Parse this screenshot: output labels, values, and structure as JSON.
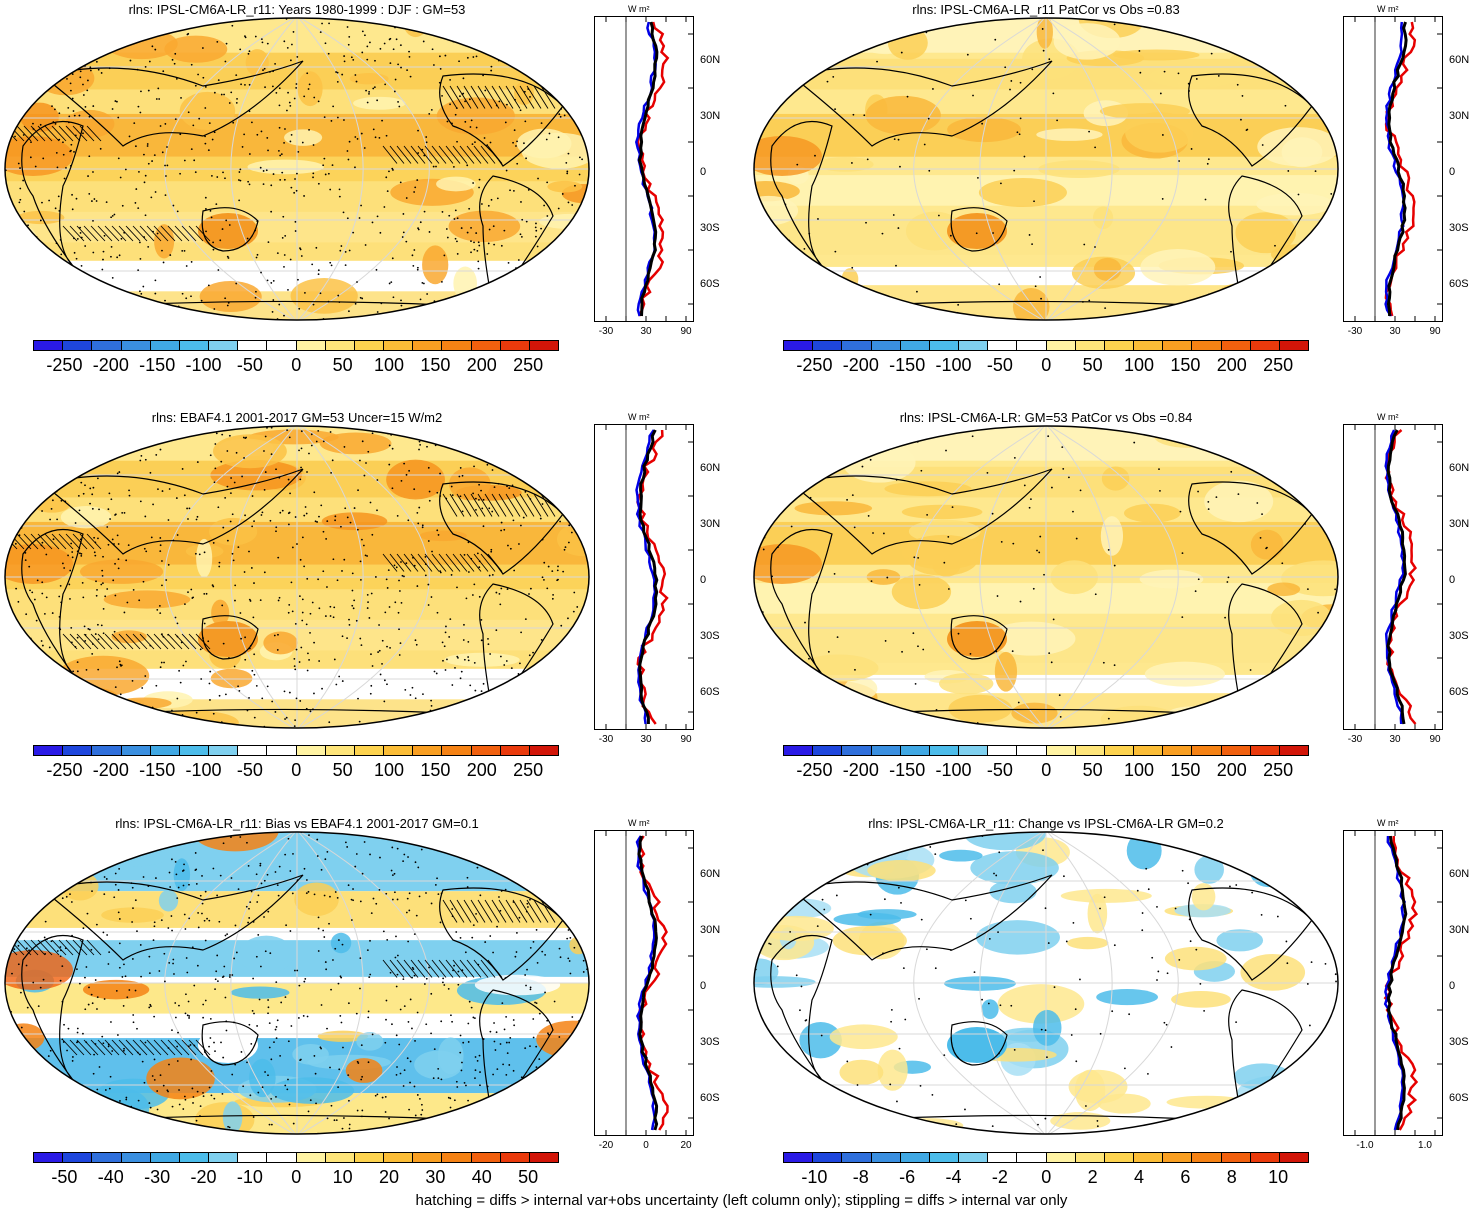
{
  "footnote": "hatching = diffs > internal var+obs uncertainty (left column only); stippling = diffs > internal var only",
  "colors": {
    "scale_main": [
      "#2a1ae6",
      "#1e46dd",
      "#2f6fdc",
      "#3a8fe0",
      "#40a8e4",
      "#4cbcea",
      "#7fd0ef",
      "#ffffff",
      "#ffffff",
      "#fff3a3",
      "#fee57a",
      "#fdd34f",
      "#fbbd37",
      "#f99f22",
      "#f58214",
      "#f1600e",
      "#ea3a0c",
      "#d21508"
    ],
    "scale_bias": [
      "#2a1ae6",
      "#1e46dd",
      "#2f6fdc",
      "#3a8fe0",
      "#40a8e4",
      "#4cbcea",
      "#7fd0ef",
      "#ffffff",
      "#ffffff",
      "#fff3a3",
      "#fee57a",
      "#fdd34f",
      "#fbbd37",
      "#f99f22",
      "#f58214",
      "#f1600e",
      "#ea3a0c",
      "#d21508"
    ],
    "profile_model": "#e60000",
    "profile_obs": "#0000e6",
    "profile_mean": "#000000"
  },
  "panels": [
    {
      "id": "model-djf",
      "title": "rlns: IPSL-CM6A-LR_r11: Years 1980-1999 : DJF : GM=53",
      "colorbar_labels": [
        "-250",
        "-200",
        "-150",
        "-100",
        "-50",
        "0",
        "50",
        "100",
        "150",
        "200",
        "250"
      ],
      "profile_unit": "W m²",
      "profile_lat_labels": [
        "60N",
        "30N",
        "0",
        "30S",
        "60S"
      ],
      "profile_x_labels": [
        "-30",
        "30",
        "90"
      ],
      "dominant": "warm"
    },
    {
      "id": "model-patcor",
      "title": "rlns: IPSL-CM6A-LR_r11 PatCor vs Obs =0.83",
      "colorbar_labels": [
        "-250",
        "-200",
        "-150",
        "-100",
        "-50",
        "0",
        "50",
        "100",
        "150",
        "200",
        "250"
      ],
      "profile_unit": "W m²",
      "profile_lat_labels": [
        "60N",
        "30N",
        "0",
        "30S",
        "60S"
      ],
      "profile_x_labels": [
        "-30",
        "30",
        "90"
      ],
      "dominant": "warm-light"
    },
    {
      "id": "obs-ebaf",
      "title": "rlns: EBAF4.1 2001-2017 GM=53 Uncer=15 W/m2",
      "colorbar_labels": [
        "-250",
        "-200",
        "-150",
        "-100",
        "-50",
        "0",
        "50",
        "100",
        "150",
        "200",
        "250"
      ],
      "profile_unit": "W m²",
      "profile_lat_labels": [
        "60N",
        "30N",
        "0",
        "30S",
        "60S"
      ],
      "profile_x_labels": [
        "-30",
        "30",
        "90"
      ],
      "dominant": "warm"
    },
    {
      "id": "ensemble-patcor",
      "title": "rlns: IPSL-CM6A-LR: GM=53 PatCor vs Obs =0.84",
      "colorbar_labels": [
        "-250",
        "-200",
        "-150",
        "-100",
        "-50",
        "0",
        "50",
        "100",
        "150",
        "200",
        "250"
      ],
      "profile_unit": "W m²",
      "profile_lat_labels": [
        "60N",
        "30N",
        "0",
        "30S",
        "60S"
      ],
      "profile_x_labels": [
        "-30",
        "30",
        "90"
      ],
      "dominant": "warm-light"
    },
    {
      "id": "bias",
      "title": "rlns: IPSL-CM6A-LR_r11: Bias vs EBAF4.1 2001-2017 GM=0.1",
      "colorbar_labels": [
        "-50",
        "-40",
        "-30",
        "-20",
        "-10",
        "0",
        "10",
        "20",
        "30",
        "40",
        "50"
      ],
      "profile_unit": "W m²",
      "profile_lat_labels": [
        "60N",
        "30N",
        "0",
        "30S",
        "60S"
      ],
      "profile_x_labels": [
        "-20",
        "0",
        "20"
      ],
      "dominant": "bias"
    },
    {
      "id": "change",
      "title": "rlns: IPSL-CM6A-LR_r11: Change vs IPSL-CM6A-LR GM=0.2",
      "colorbar_labels": [
        "-10",
        "-8",
        "-6",
        "-4",
        "-2",
        "0",
        "2",
        "4",
        "6",
        "8",
        "10"
      ],
      "profile_unit": "W m²",
      "profile_lat_labels": [
        "60N",
        "30N",
        "0",
        "30S",
        "60S"
      ],
      "profile_x_labels": [
        "-1.0",
        "1.0"
      ],
      "dominant": "change"
    }
  ]
}
